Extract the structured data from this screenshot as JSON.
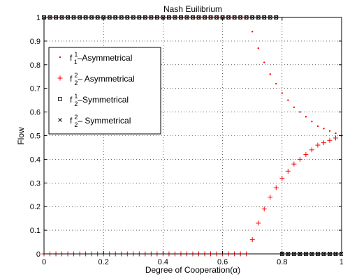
{
  "chart_data": {
    "type": "scatter",
    "title": "Nash Euilibrium",
    "xlabel": "Degree of Cooperation(α)",
    "ylabel": "Flow",
    "xlim": [
      0,
      1
    ],
    "ylim": [
      0,
      1
    ],
    "xticks": [
      0,
      0.2,
      0.4,
      0.6,
      0.8,
      1
    ],
    "xtick_labels": [
      "0",
      "0.2",
      "0.4",
      "0.6",
      "0.8",
      "1"
    ],
    "yticks": [
      0,
      0.1,
      0.2,
      0.3,
      0.4,
      0.5,
      0.6,
      0.7,
      0.8,
      0.9,
      1
    ],
    "ytick_labels": [
      "0",
      "0.1",
      "0.2",
      "0.3",
      "0.4",
      "0.5",
      "0.6",
      "0.7",
      "0.8",
      "0.9",
      "1"
    ],
    "grid": true,
    "legend_position": "upper-left",
    "colors": {
      "asymmetrical": "#ff0000",
      "symmetrical": "#000000"
    },
    "x": [
      0,
      0.02,
      0.04,
      0.06,
      0.08,
      0.1,
      0.12,
      0.14,
      0.16,
      0.18,
      0.2,
      0.22,
      0.24,
      0.26,
      0.28,
      0.3,
      0.32,
      0.34,
      0.36,
      0.38,
      0.4,
      0.42,
      0.44,
      0.46,
      0.48,
      0.5,
      0.52,
      0.54,
      0.56,
      0.58,
      0.6,
      0.62,
      0.64,
      0.66,
      0.68,
      0.7,
      0.72,
      0.74,
      0.76,
      0.78,
      0.8,
      0.82,
      0.84,
      0.86,
      0.88,
      0.9,
      0.92,
      0.94,
      0.96,
      0.98,
      1
    ],
    "series": [
      {
        "legend_main": "f",
        "legend_sup": "1",
        "legend_sub": "1",
        "legend_rest": "–Asymmetrical",
        "marker": "dot",
        "color": "#ff0000",
        "values": [
          1,
          1,
          1,
          1,
          1,
          1,
          1,
          1,
          1,
          1,
          1,
          1,
          1,
          1,
          1,
          1,
          1,
          1,
          1,
          1,
          1,
          1,
          1,
          1,
          1,
          1,
          1,
          1,
          1,
          1,
          1,
          1,
          1,
          1,
          1,
          0.94,
          0.87,
          0.81,
          0.76,
          0.72,
          0.68,
          0.65,
          0.62,
          0.6,
          0.58,
          0.56,
          0.54,
          0.53,
          0.52,
          0.51,
          0.5
        ]
      },
      {
        "legend_main": "f",
        "legend_sup": "2",
        "legend_sub": "2",
        "legend_rest": "– Asymmetrical",
        "marker": "plus",
        "color": "#ff0000",
        "values": [
          0,
          0,
          0,
          0,
          0,
          0,
          0,
          0,
          0,
          0,
          0,
          0,
          0,
          0,
          0,
          0,
          0,
          0,
          0,
          0,
          0,
          0,
          0,
          0,
          0,
          0,
          0,
          0,
          0,
          0,
          0,
          0,
          0,
          0,
          0,
          0.06,
          0.13,
          0.19,
          0.24,
          0.28,
          0.32,
          0.35,
          0.38,
          0.4,
          0.42,
          0.44,
          0.46,
          0.47,
          0.48,
          0.49,
          0.5
        ]
      },
      {
        "legend_main": "f",
        "legend_sup": "1",
        "legend_sub": "2",
        "legend_rest": "–Symmetrical",
        "marker": "square",
        "color": "#000000",
        "values": [
          1,
          1,
          1,
          1,
          1,
          1,
          1,
          1,
          1,
          1,
          1,
          1,
          1,
          1,
          1,
          1,
          1,
          1,
          1,
          1,
          1,
          1,
          1,
          1,
          1,
          1,
          1,
          1,
          1,
          1,
          1,
          1,
          1,
          1,
          1,
          1,
          1,
          1,
          1,
          1,
          0,
          0,
          0,
          0,
          0,
          0,
          0,
          0,
          0,
          0,
          0
        ]
      },
      {
        "legend_main": "f",
        "legend_sup": "2",
        "legend_sub": "2",
        "legend_rest": "– Symmetrical",
        "marker": "cross",
        "color": "#000000",
        "values": [
          1,
          1,
          1,
          1,
          1,
          1,
          1,
          1,
          1,
          1,
          1,
          1,
          1,
          1,
          1,
          1,
          1,
          1,
          1,
          1,
          1,
          1,
          1,
          1,
          1,
          1,
          1,
          1,
          1,
          1,
          1,
          1,
          1,
          1,
          1,
          1,
          1,
          1,
          1,
          1,
          0,
          0,
          0,
          0,
          0,
          0,
          0,
          0,
          0,
          0,
          0
        ]
      }
    ]
  }
}
